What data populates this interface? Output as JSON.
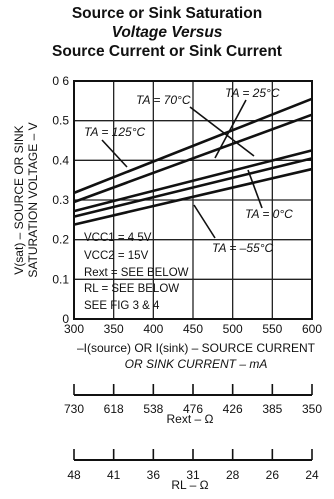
{
  "title": {
    "line1": "Source or Sink Saturation",
    "line2": "Voltage Versus",
    "line3": "Source Current or Sink Current"
  },
  "chart_data": {
    "type": "line",
    "ylabel": {
      "line1": "V(sat) – SOURCE OR SINK",
      "line2": "SATURATION VOLTAGE – V"
    },
    "xlabel": {
      "line1": "–I(source) OR I(sink) – SOURCE CURRENT",
      "line2": "OR SINK CURRENT – mA"
    },
    "xlim": [
      300,
      600
    ],
    "ylim": [
      0,
      0.6
    ],
    "x_ticks": [
      300,
      350,
      400,
      450,
      500,
      550,
      600
    ],
    "y_ticks": [
      0,
      0.1,
      0.2,
      0.3,
      0.4,
      0.5,
      0.6
    ],
    "x_tick_labels": [
      "300",
      "350",
      "400",
      "450",
      "500",
      "550",
      "600"
    ],
    "y_tick_labels": [
      "0",
      "0.1",
      "0.2",
      "0.3",
      "0.4",
      "0.5",
      "0 6"
    ],
    "grid": true,
    "series": [
      {
        "name": "TA = 125°C",
        "x": [
          300,
          600
        ],
        "y": [
          0.318,
          0.555
        ]
      },
      {
        "name": "TA = 70°C",
        "x": [
          300,
          600
        ],
        "y": [
          0.295,
          0.515
        ]
      },
      {
        "name": "TA = 25°C",
        "x": [
          300,
          600
        ],
        "y": [
          0.272,
          0.425
        ]
      },
      {
        "name": "TA = 0°C",
        "x": [
          300,
          600
        ],
        "y": [
          0.258,
          0.405
        ]
      },
      {
        "name": "TA = –55°C",
        "x": [
          300,
          600
        ],
        "y": [
          0.238,
          0.378
        ]
      }
    ],
    "annotations": {
      "label_125": "TA = 125°C",
      "label_70": "TA = 70°C",
      "label_25": "TA = 25°C",
      "label_0": "TA = 0°C",
      "label_m55": "TA = –55°C",
      "cond_vcc1": "VCC1 = 4 5V",
      "cond_vcc2": "VCC2 = 15V",
      "cond_rext": "Rext = SEE BELOW",
      "cond_rl": "RL = SEE BELOW",
      "cond_fig": "SEE FIG 3 & 4"
    },
    "rext_scale": {
      "label": "Rext – Ω",
      "tick_labels": [
        "730",
        "618",
        "538",
        "476",
        "426",
        "385",
        "350"
      ]
    },
    "rl_scale": {
      "label": "RL – Ω",
      "tick_labels": [
        "48",
        "41",
        "36",
        "31",
        "28",
        "26",
        "24"
      ]
    }
  }
}
